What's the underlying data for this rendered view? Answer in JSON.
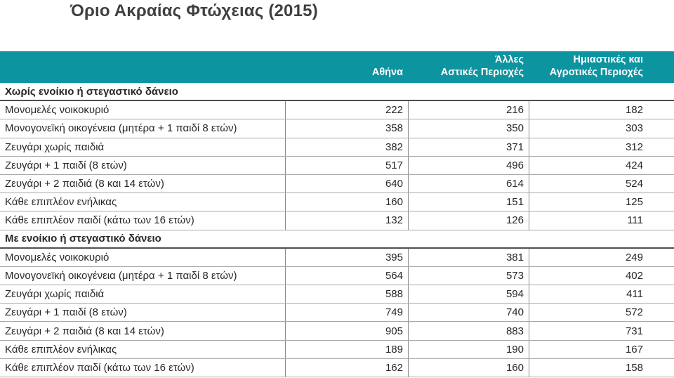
{
  "title": "Όριο Ακραίας Φτώχειας (2015)",
  "colors": {
    "header_bg": "#0C94A0",
    "header_text": "#FFFFFF",
    "title_text": "#3F3F3F",
    "body_text": "#282828",
    "row_border": "#A8A8A8",
    "section_border": "#4F4F4F",
    "col_divider": "#8A8A8A"
  },
  "chart_data": {
    "type": "table",
    "title": "Όριο Ακραίας Φτώχειας (2015)",
    "column_headers": [
      {
        "name": "Αθήνα",
        "lines": [
          "",
          "Αθήνα"
        ]
      },
      {
        "name": "Άλλες Αστικές Περιοχές",
        "lines": [
          "Άλλες",
          "Αστικές Περιοχές"
        ]
      },
      {
        "name": "Ημιαστικές και Αγροτικές Περιοχές",
        "lines": [
          "Ημιαστικές και",
          "Αγροτικές Περιοχές"
        ]
      }
    ],
    "sections": [
      {
        "header": "Χωρίς ενοίκιο ή στεγαστικό δάνειο",
        "rows": [
          {
            "label": "Μονομελές νοικοκυριό",
            "values": [
              "222",
              "216",
              "182"
            ]
          },
          {
            "label": "Μονογονεϊκή οικογένεια (μητέρα + 1 παιδί 8 ετών)",
            "values": [
              "358",
              "350",
              "303"
            ]
          },
          {
            "label": "Ζευγάρι χωρίς παιδιά",
            "values": [
              "382",
              "371",
              "312"
            ]
          },
          {
            "label": "Ζευγάρι + 1 παιδί (8 ετών)",
            "values": [
              "517",
              "496",
              "424"
            ]
          },
          {
            "label": "Ζευγάρι + 2 παιδιά (8 και 14 ετών)",
            "values": [
              "640",
              "614",
              "524"
            ]
          },
          {
            "label": "Κάθε επιπλέον ενήλικας",
            "values": [
              "160",
              "151",
              "125"
            ]
          },
          {
            "label": "Κάθε επιπλέον παιδί (κάτω των 16 ετών)",
            "values": [
              "132",
              "126",
              "111"
            ]
          }
        ]
      },
      {
        "header": "Με ενοίκιο ή στεγαστικό δάνειο",
        "rows": [
          {
            "label": "Μονομελές νοικοκυριό",
            "values": [
              "395",
              "381",
              "249"
            ]
          },
          {
            "label": "Μονογονεϊκή οικογένεια (μητέρα + 1 παιδί 8 ετών)",
            "values": [
              "564",
              "573",
              "402"
            ]
          },
          {
            "label": "Ζευγάρι χωρίς παιδιά",
            "values": [
              "588",
              "594",
              "411"
            ]
          },
          {
            "label": "Ζευγάρι + 1 παιδί (8 ετών)",
            "values": [
              "749",
              "740",
              "572"
            ]
          },
          {
            "label": "Ζευγάρι + 2 παιδιά (8 και 14 ετών)",
            "values": [
              "905",
              "883",
              "731"
            ]
          },
          {
            "label": "Κάθε επιπλέον ενήλικας",
            "values": [
              "189",
              "190",
              "167"
            ]
          },
          {
            "label": "Κάθε επιπλέον παιδί (κάτω των 16 ετών)",
            "values": [
              "162",
              "160",
              "158"
            ]
          }
        ]
      }
    ]
  }
}
